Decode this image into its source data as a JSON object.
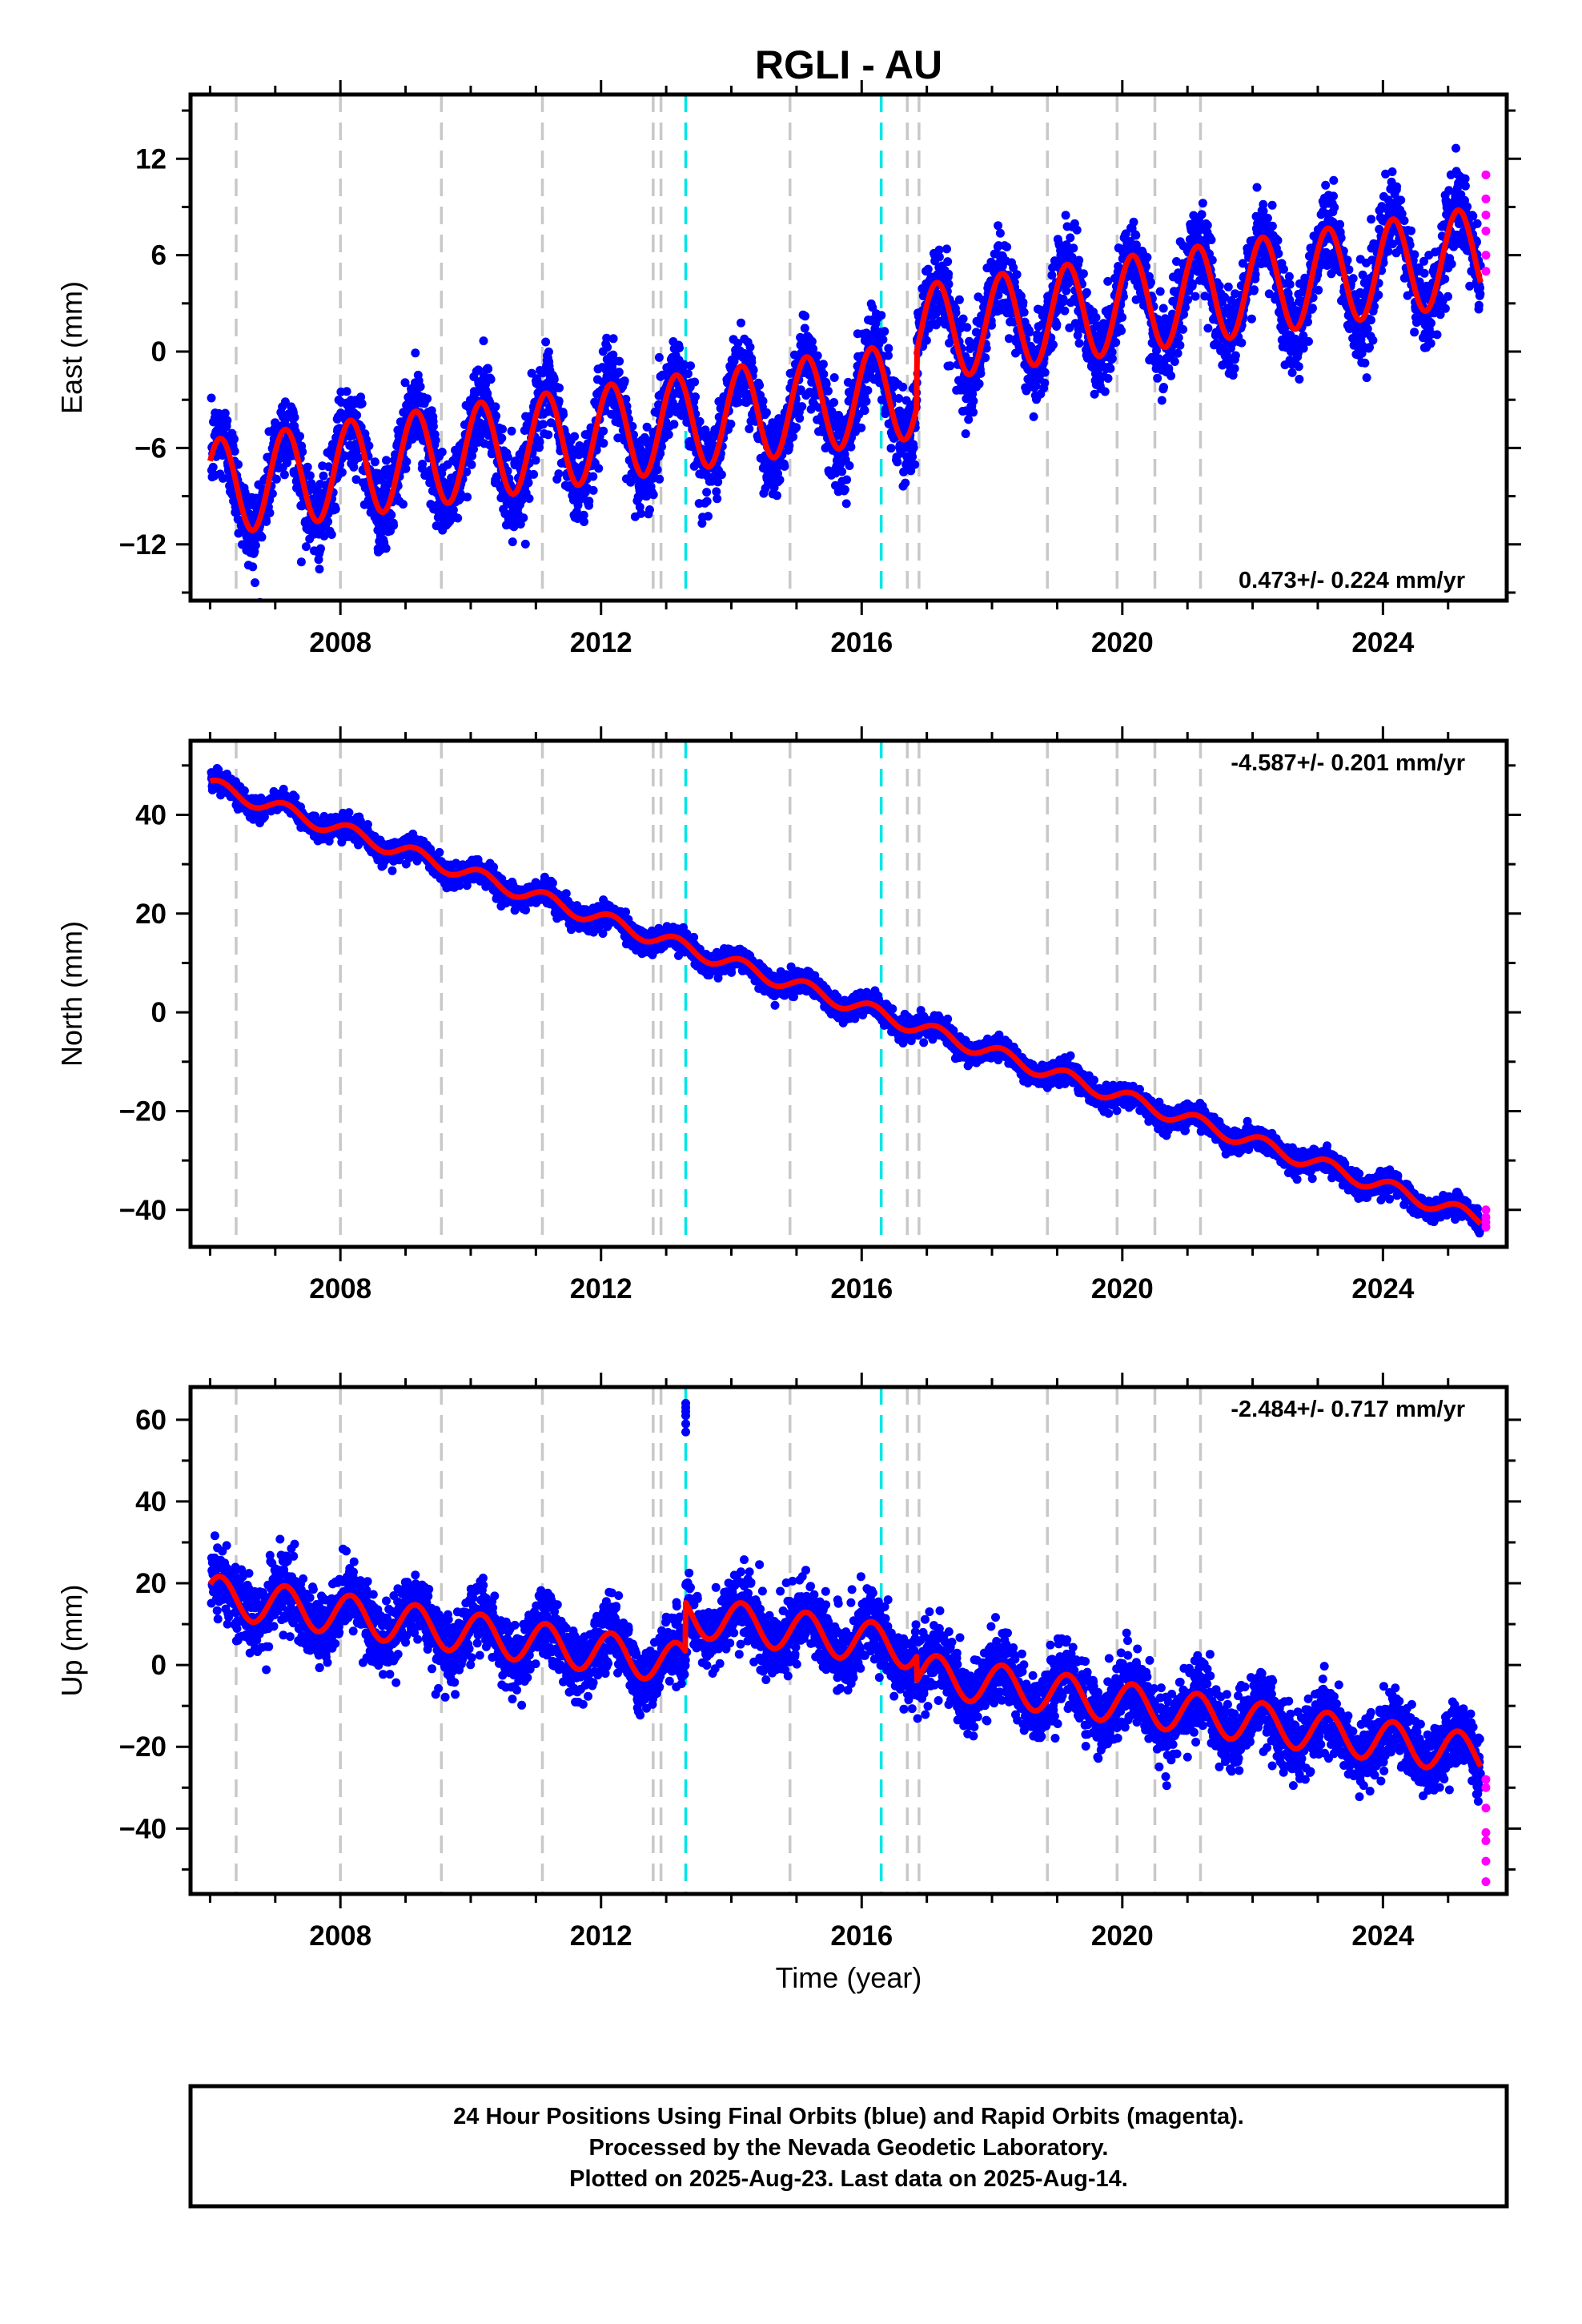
{
  "title": "RGLI - AU",
  "xlabel": "Time (year)",
  "footer": [
    "24 Hour Positions Using Final Orbits (blue) and Rapid Orbits (magenta).",
    "Processed by the Nevada Geodetic Laboratory.",
    "Plotted on 2025-Aug-23. Last data on 2025-Aug-14."
  ],
  "colors": {
    "final_orbits": "#0000ff",
    "rapid_orbits": "#ff00ff",
    "model": "#ff0000",
    "equipment_change": "#c8c8c8",
    "earthquake": "#00e5e5"
  },
  "chart_data": [
    {
      "type": "scatter",
      "ylabel": "East (mm)",
      "rate": "0.473+/- 0.224 mm/yr",
      "rate_position": "bottom-right",
      "xlim": [
        2005.7,
        2025.9
      ],
      "ylim": [
        -15.5,
        16
      ],
      "xticks": [
        2008,
        2012,
        2016,
        2020,
        2024
      ],
      "yticks": [
        -12,
        -6,
        0,
        6,
        12
      ],
      "trend": {
        "start": [
          2006.0,
          -8.5
        ],
        "end": [
          2025.5,
          6.0
        ]
      },
      "seasonal_amplitude": 3,
      "offsets": [
        {
          "x": 2016.85,
          "dy": 3.5
        }
      ],
      "noise_sd": 1.3,
      "rapid_orbits": {
        "x": 2025.58,
        "y": [
          5.0,
          6.0,
          7.5,
          8.5,
          9.5,
          11.0
        ]
      }
    },
    {
      "type": "scatter",
      "ylabel": "North (mm)",
      "rate": "-4.587+/- 0.201 mm/yr",
      "rate_position": "top-right",
      "xlim": [
        2005.7,
        2025.9
      ],
      "ylim": [
        -47.5,
        55
      ],
      "xticks": [
        2008,
        2012,
        2016,
        2020,
        2024
      ],
      "yticks": [
        -40,
        -20,
        0,
        20,
        40
      ],
      "trend": {
        "start": [
          2006.0,
          46.0
        ],
        "end": [
          2025.5,
          -42.0
        ]
      },
      "seasonal_amplitude": 1.5,
      "offsets": [],
      "noise_sd": 1.1,
      "rapid_orbits": {
        "x": 2025.58,
        "y": [
          -40.0,
          -41.5,
          -42.5,
          -43.5
        ]
      }
    },
    {
      "type": "scatter",
      "ylabel": "Up (mm)",
      "rate": "-2.484+/- 0.717 mm/yr",
      "rate_position": "top-right",
      "xlim": [
        2005.7,
        2025.9
      ],
      "ylim": [
        -56,
        68
      ],
      "xticks": [
        2008,
        2012,
        2016,
        2020,
        2024
      ],
      "yticks": [
        -40,
        -20,
        0,
        20,
        40,
        60
      ],
      "trend": {
        "start": [
          2006.0,
          17.0
        ],
        "end": [
          2025.5,
          -22.0
        ]
      },
      "seasonal_amplitude": 5,
      "offsets": [
        {
          "x": 2013.3,
          "dy": 12
        },
        {
          "x": 2016.85,
          "dy": -6
        }
      ],
      "noise_sd": 4.2,
      "outliers": {
        "x": 2013.3,
        "y": [
          57,
          59,
          61,
          62,
          63,
          64
        ]
      },
      "rapid_orbits": {
        "x": 2025.58,
        "y": [
          -28.0,
          -30.0,
          -35.0,
          -41.0,
          -43.0,
          -48.0,
          -53.0
        ]
      }
    }
  ],
  "equipment_changes": [
    2006.4,
    2008.0,
    2009.55,
    2011.1,
    2012.8,
    2012.92,
    2014.9,
    2016.7,
    2016.88,
    2018.85,
    2019.92,
    2020.5,
    2021.2
  ],
  "earthquakes": [
    2013.3,
    2016.3
  ]
}
